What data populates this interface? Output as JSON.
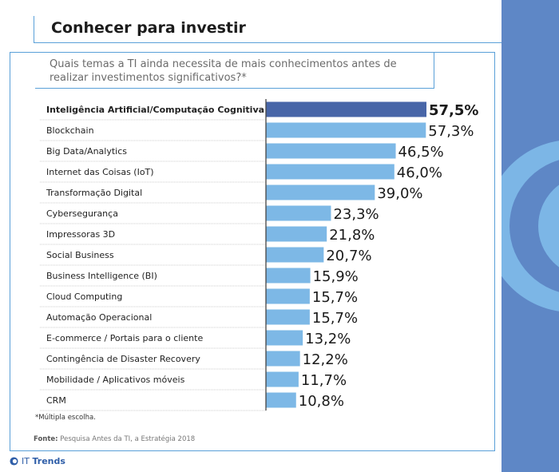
{
  "header": {
    "title": "Conhecer para investir"
  },
  "chart_data": {
    "type": "bar",
    "orientation": "horizontal",
    "title": "Quais temas a TI ainda necessita de mais conhecimentos antes de realizar investimentos significativos?*",
    "categories": [
      "Inteligência Artificial/Computação Cognitiva",
      "Blockchain",
      "Big Data/Analytics",
      "Internet das Coisas (IoT)",
      "Transformação Digital",
      "Cybersegurança",
      "Impressoras 3D",
      "Social Business",
      "Business Intelligence (BI)",
      "Cloud Computing",
      "Automação Operacional",
      "E-commerce / Portais para o cliente",
      "Contingência de Disaster Recovery",
      "Mobilidade / Aplicativos móveis",
      "CRM"
    ],
    "values": [
      57.5,
      57.3,
      46.5,
      46.0,
      39.0,
      23.3,
      21.8,
      20.7,
      15.9,
      15.7,
      15.7,
      13.2,
      12.2,
      11.7,
      10.8
    ],
    "value_labels": [
      "57,5%",
      "57,3%",
      "46,5%",
      "46,0%",
      "39,0%",
      "23,3%",
      "21,8%",
      "20,7%",
      "15,9%",
      "15,7%",
      "15,7%",
      "13,2%",
      "12,2%",
      "11,7%",
      "10,8%"
    ],
    "highlight_index": 0,
    "colors": {
      "highlight": "#4866a8",
      "default": "#7db8e6",
      "separator": "#bcbcbc",
      "axis": "#444444"
    },
    "xlim": [
      0,
      57.5
    ],
    "grid": false,
    "legend": "none"
  },
  "footnote": "*Múltipla escolha.",
  "source": {
    "label": "Fonte:",
    "text": "Pesquisa Antes da TI, a Estratégia 2018"
  },
  "brand": {
    "prefix": "IT",
    "name": "Trends",
    "icon": "it-trends-logo-icon"
  }
}
